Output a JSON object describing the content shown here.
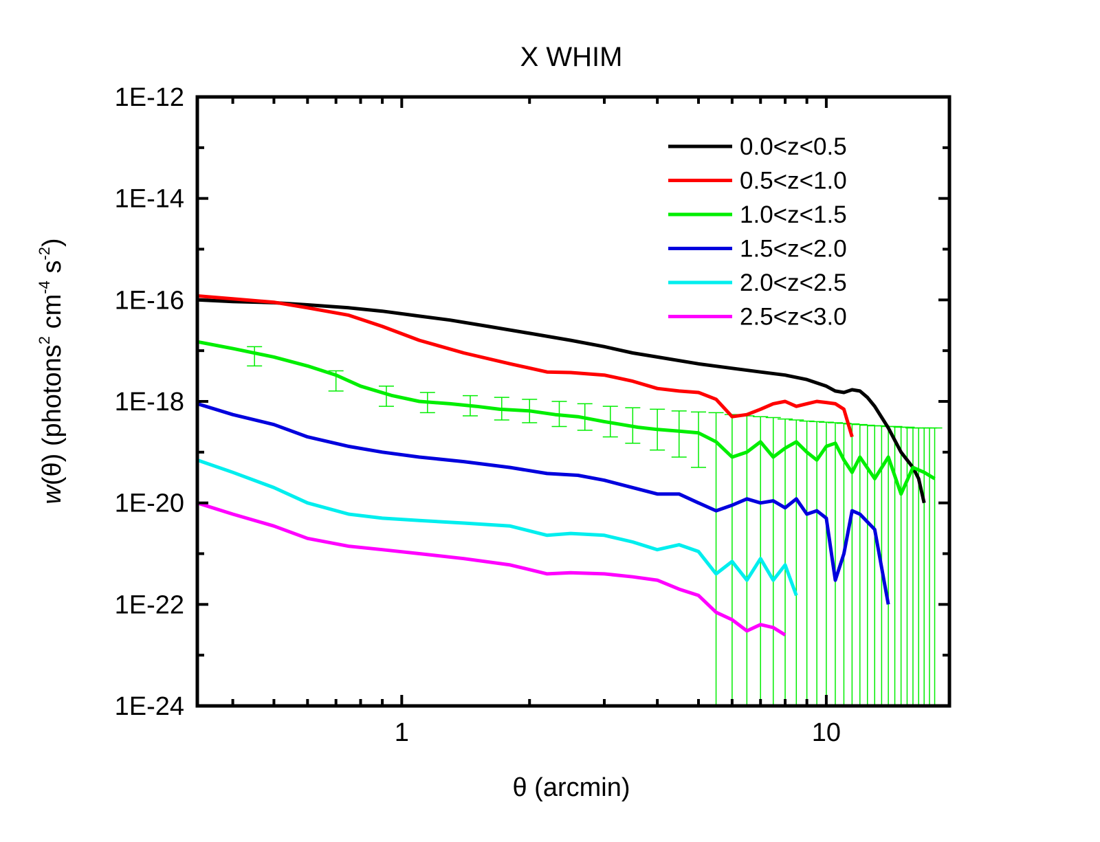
{
  "chart_data": {
    "type": "line",
    "title": "X WHIM",
    "xlabel": "θ (arcmin)",
    "ylabel": {
      "italic": "w",
      "prefix": "(θ) (photons",
      "sup1": "2",
      "mid1": " cm",
      "sup2": "-4",
      "mid2": " s",
      "sup3": "-2",
      "suffix": ")"
    },
    "x_scale": "log",
    "y_scale": "log",
    "xlim": [
      0.33,
      19.5
    ],
    "ylim": [
      1e-24,
      1e-12
    ],
    "x_ticks": [
      {
        "value": 1,
        "label": "1"
      },
      {
        "value": 10,
        "label": "10"
      }
    ],
    "y_ticks": [
      {
        "value": 1e-12,
        "label": "1E-12"
      },
      {
        "value": 1e-14,
        "label": "1E-14"
      },
      {
        "value": 1e-16,
        "label": "1E-16"
      },
      {
        "value": 1e-18,
        "label": "1E-18"
      },
      {
        "value": 1e-20,
        "label": "1E-20"
      },
      {
        "value": 1e-22,
        "label": "1E-22"
      },
      {
        "value": 1e-24,
        "label": "1E-24"
      }
    ],
    "legend_position": "top-right",
    "series": [
      {
        "name": "0.0<z<0.5",
        "color": "#000000",
        "x": [
          0.33,
          0.4,
          0.5,
          0.6,
          0.75,
          0.9,
          1.1,
          1.3,
          1.6,
          2.0,
          2.5,
          3.0,
          3.5,
          4.0,
          5.0,
          6.0,
          7.0,
          8.0,
          9.0,
          10.0,
          10.5,
          11.0,
          11.5,
          12.0,
          12.5,
          13.0,
          14.0,
          15.0,
          16.0,
          16.5,
          17.0
        ],
        "y": [
          1e-16,
          9.3e-17,
          8.8e-17,
          8e-17,
          7e-17,
          6e-17,
          4.8e-17,
          4e-17,
          3e-17,
          2.2e-17,
          1.6e-17,
          1.2e-17,
          9e-18,
          7.5e-18,
          5.5e-18,
          4.5e-18,
          3.8e-18,
          3.3e-18,
          2.7e-18,
          2e-18,
          1.6e-18,
          1.5e-18,
          1.7e-18,
          1.6e-18,
          1.2e-18,
          8e-19,
          3e-19,
          1e-19,
          5e-20,
          3e-20,
          1e-20
        ]
      },
      {
        "name": "0.5<z<1.0",
        "color": "#ff0000",
        "x": [
          0.33,
          0.4,
          0.5,
          0.6,
          0.75,
          0.9,
          1.1,
          1.4,
          1.8,
          2.2,
          2.5,
          3.0,
          3.5,
          4.0,
          4.5,
          5.0,
          5.5,
          6.0,
          6.5,
          7.0,
          7.5,
          8.0,
          8.5,
          9.0,
          9.5,
          10.0,
          10.5,
          11.0,
          11.5
        ],
        "y": [
          1.2e-16,
          1.05e-16,
          9e-17,
          7e-17,
          5e-17,
          3e-17,
          1.6e-17,
          9e-18,
          5.5e-18,
          3.8e-18,
          3.7e-18,
          3.3e-18,
          2.5e-18,
          1.8e-18,
          1.6e-18,
          1.5e-18,
          1.1e-18,
          5e-19,
          5.5e-19,
          7e-19,
          9e-19,
          1e-18,
          8e-19,
          9e-19,
          1e-18,
          9.5e-19,
          9e-19,
          7e-19,
          2e-19
        ]
      },
      {
        "name": "1.0<z<1.5",
        "color": "#00ee00",
        "x": [
          0.33,
          0.4,
          0.5,
          0.6,
          0.7,
          0.8,
          0.95,
          1.1,
          1.3,
          1.5,
          1.7,
          2.0,
          2.3,
          2.6,
          3.0,
          3.3,
          3.6,
          4.0,
          4.5,
          5.0,
          5.5,
          6.0,
          6.5,
          7.0,
          7.5,
          8.0,
          8.5,
          9.0,
          9.5,
          10.0,
          10.5,
          11.0,
          11.5,
          12.0,
          13.0,
          14.0,
          15.0,
          16.0,
          17.0,
          18.0
        ],
        "y": [
          1.5e-17,
          1.1e-17,
          7.5e-18,
          5e-18,
          3.3e-18,
          2e-18,
          1.3e-18,
          1e-18,
          9e-19,
          8e-19,
          7e-19,
          6.5e-19,
          5.5e-19,
          5e-19,
          4e-19,
          3.5e-19,
          3.1e-19,
          2.8e-19,
          2.6e-19,
          2.4e-19,
          1.6e-19,
          8e-20,
          1e-19,
          1.6e-19,
          8e-20,
          1.2e-19,
          1.6e-19,
          1e-19,
          7e-20,
          1.3e-19,
          1.5e-19,
          7e-20,
          4e-20,
          8e-20,
          3e-20,
          8e-20,
          1.5e-20,
          5e-20,
          4e-20,
          3e-20
        ],
        "error_x": [
          0.45,
          0.7,
          0.92,
          1.15,
          1.45,
          1.72,
          2.0,
          2.35,
          2.7,
          3.1,
          3.5,
          4.0,
          4.5,
          5.0,
          5.5,
          6.0,
          6.5,
          7.0,
          7.5,
          8.0,
          8.5,
          9.0,
          9.5,
          10.0,
          10.5,
          11.0,
          11.5,
          12.0,
          12.5,
          13.0,
          13.5,
          14.0,
          14.5,
          15.0,
          15.5,
          16.0,
          16.5,
          17.0,
          17.5,
          18.0
        ],
        "error_y": [
          8e-18,
          2.5e-18,
          1.3e-18,
          9.5e-19,
          8.2e-19,
          7.2e-19,
          6.5e-19,
          5.7e-19,
          5e-19,
          4.2e-19,
          3.6e-19,
          3.1e-19,
          2.8e-19,
          2.5e-19,
          2e-19,
          1.4e-19,
          1e-19,
          1.1e-19,
          1.4e-19,
          1.2e-19,
          1.5e-19,
          1.1e-19,
          8e-20,
          1.2e-19,
          1.4e-19,
          8e-20,
          5e-20,
          7e-20,
          5e-20,
          3e-20,
          6e-20,
          7e-20,
          3e-20,
          2e-20,
          4e-20,
          5e-20,
          4e-20,
          4e-20,
          3.5e-20,
          3e-20
        ],
        "error_hi": [
          1.2e-17,
          4e-18,
          2e-18,
          1.5e-18,
          1.3e-18,
          1.2e-18,
          1.1e-18,
          1e-18,
          9e-19,
          8e-19,
          7.5e-19,
          7e-19,
          6.5e-19,
          6.2e-19,
          6e-19,
          5.5e-19,
          5.2e-19,
          5e-19,
          4.8e-19,
          4.5e-19,
          4.3e-19,
          4.1e-19,
          4e-19,
          3.9e-19,
          3.8e-19,
          3.7e-19,
          3.6e-19,
          3.5e-19,
          3.4e-19,
          3.3e-19,
          3.3e-19,
          3.2e-19,
          3.2e-19,
          3.1e-19,
          3.1e-19,
          3e-19,
          3e-19,
          3e-19,
          3e-19,
          3e-19
        ],
        "error_lo": [
          5e-18,
          1.6e-18,
          8e-19,
          6e-19,
          5.2e-19,
          4.3e-19,
          3.8e-19,
          3.2e-19,
          2.7e-19,
          2e-19,
          1.5e-19,
          1.1e-19,
          8e-20,
          5e-20,
          1e-24,
          1e-24,
          1e-24,
          1e-24,
          1e-24,
          1e-24,
          1e-24,
          1e-24,
          1e-24,
          1e-24,
          1e-24,
          1e-24,
          1e-24,
          1e-24,
          1e-24,
          1e-24,
          1e-24,
          1e-24,
          1e-24,
          1e-24,
          1e-24,
          1e-24,
          1e-24,
          1e-24,
          1e-24,
          1e-24
        ]
      },
      {
        "name": "1.5<z<2.0",
        "color": "#0000dd",
        "x": [
          0.33,
          0.4,
          0.5,
          0.6,
          0.75,
          0.9,
          1.1,
          1.4,
          1.8,
          2.2,
          2.6,
          3.0,
          3.5,
          4.0,
          4.5,
          5.0,
          5.5,
          6.0,
          6.5,
          7.0,
          7.5,
          8.0,
          8.5,
          9.0,
          9.5,
          10.0,
          10.5,
          11.0,
          11.5,
          12.0,
          13.0,
          14.0
        ],
        "y": [
          9e-19,
          5.5e-19,
          3.5e-19,
          2e-19,
          1.3e-19,
          1e-19,
          8e-20,
          6.5e-20,
          5e-20,
          3.8e-20,
          3.5e-20,
          2.8e-20,
          2e-20,
          1.5e-20,
          1.5e-20,
          1e-20,
          7e-21,
          9e-21,
          1.2e-20,
          1e-20,
          1.1e-20,
          8e-21,
          1.2e-20,
          6e-21,
          7e-21,
          5e-21,
          3e-22,
          1e-21,
          7e-21,
          6e-21,
          3e-21,
          1e-22
        ]
      },
      {
        "name": "2.0<z<2.5",
        "color": "#00eeee",
        "x": [
          0.33,
          0.4,
          0.5,
          0.6,
          0.75,
          0.9,
          1.1,
          1.4,
          1.8,
          2.2,
          2.5,
          3.0,
          3.5,
          4.0,
          4.5,
          5.0,
          5.5,
          6.0,
          6.5,
          7.0,
          7.5,
          8.0,
          8.5
        ],
        "y": [
          7e-20,
          4e-20,
          2e-20,
          1e-20,
          6e-21,
          5e-21,
          4.5e-21,
          4e-21,
          3.5e-21,
          2.3e-21,
          2.5e-21,
          2.3e-21,
          1.7e-21,
          1.2e-21,
          1.5e-21,
          1.1e-21,
          4e-22,
          7e-22,
          3e-22,
          8e-22,
          3e-22,
          6e-22,
          1.5e-22
        ]
      },
      {
        "name": "2.5<z<3.0",
        "color": "#ff00ff",
        "x": [
          0.33,
          0.4,
          0.5,
          0.6,
          0.75,
          0.9,
          1.1,
          1.4,
          1.8,
          2.2,
          2.5,
          3.0,
          3.5,
          4.0,
          4.5,
          5.0,
          5.5,
          6.0,
          6.5,
          7.0,
          7.5,
          8.0
        ],
        "y": [
          1e-20,
          6e-21,
          3.5e-21,
          2e-21,
          1.4e-21,
          1.2e-21,
          1e-21,
          8e-22,
          6e-22,
          4e-22,
          4.2e-22,
          4e-22,
          3.5e-22,
          3e-22,
          2e-22,
          1.5e-22,
          7e-23,
          5e-23,
          3e-23,
          4e-23,
          3.5e-23,
          2.5e-23
        ]
      }
    ]
  }
}
